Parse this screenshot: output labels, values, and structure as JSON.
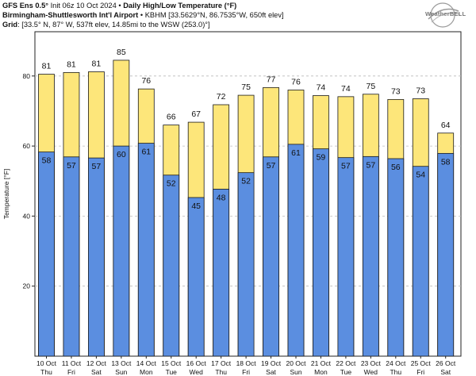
{
  "header": {
    "line1_bold": "GFS Ens 0.5°",
    "line1_mid": " Init 06z 10 Oct 2024 • ",
    "line1_title": "Daily High/Low Temperature (°F)",
    "line2_bold": "Birmingham-Shuttlesworth Int'l Airport",
    "line2_rest": " • KBHM [33.5629°N, 86.7535°W, 650ft elev]",
    "line3_bold": "Grid",
    "line3_rest": ": [33.5° N, 87° W, 537ft elev, 14.85mi to the WSW (253.0)°]"
  },
  "logo_text": "WeatherBELL",
  "colors": {
    "high_fill": "#fde67a",
    "low_fill": "#5b8ee0",
    "bar_stroke": "#1a1a1a",
    "plot_bg": "#ffffff",
    "gridline": "#bbbbbb"
  },
  "chart_data": {
    "type": "bar",
    "ylabel": "Temperature [°F]",
    "ylim": [
      0,
      90
    ],
    "yticks": [
      20,
      40,
      60,
      80
    ],
    "grid": "y-dashed",
    "categories": [
      {
        "date": "10 Oct",
        "day": "Thu"
      },
      {
        "date": "11 Oct",
        "day": "Fri"
      },
      {
        "date": "12 Oct",
        "day": "Sat"
      },
      {
        "date": "13 Oct",
        "day": "Sun"
      },
      {
        "date": "14 Oct",
        "day": "Mon"
      },
      {
        "date": "15 Oct",
        "day": "Tue"
      },
      {
        "date": "16 Oct",
        "day": "Wed"
      },
      {
        "date": "17 Oct",
        "day": "Thu"
      },
      {
        "date": "18 Oct",
        "day": "Fri"
      },
      {
        "date": "19 Oct",
        "day": "Sat"
      },
      {
        "date": "20 Oct",
        "day": "Sun"
      },
      {
        "date": "21 Oct",
        "day": "Mon"
      },
      {
        "date": "22 Oct",
        "day": "Tue"
      },
      {
        "date": "23 Oct",
        "day": "Wed"
      },
      {
        "date": "24 Oct",
        "day": "Thu"
      },
      {
        "date": "25 Oct",
        "day": "Fri"
      },
      {
        "date": "26 Oct",
        "day": "Sat"
      }
    ],
    "series": [
      {
        "values": [
          81,
          81,
          81,
          85,
          76,
          66,
          67,
          72,
          75,
          77,
          76,
          74,
          74,
          75,
          73,
          73,
          64
        ],
        "value_range": [
          80.5,
          81.0,
          81.2,
          84.5,
          76.3,
          66.0,
          66.8,
          71.8,
          74.5,
          76.7,
          76.0,
          74.4,
          74.1,
          74.8,
          73.3,
          73.5,
          63.7
        ]
      },
      {
        "values": [
          58,
          57,
          57,
          60,
          61,
          52,
          45,
          48,
          52,
          57,
          61,
          59,
          57,
          57,
          56,
          54,
          58
        ],
        "value_range": [
          58.3,
          56.9,
          56.6,
          60.0,
          60.8,
          51.7,
          45.3,
          47.7,
          52.4,
          56.9,
          60.5,
          59.2,
          56.7,
          57.0,
          56.4,
          54.2,
          57.9
        ]
      }
    ]
  }
}
